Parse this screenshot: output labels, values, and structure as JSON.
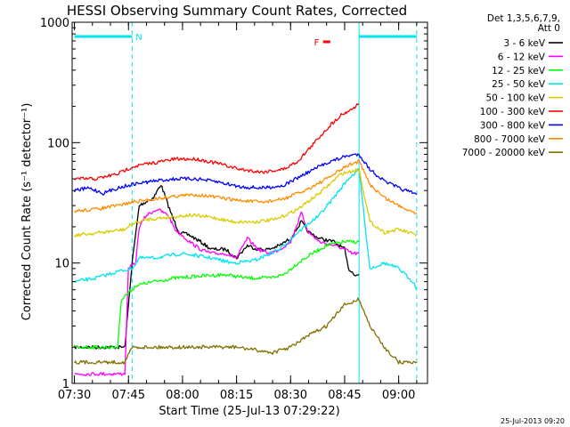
{
  "chart_data": {
    "type": "line",
    "title": "HESSI Observing Summary Count Rates, Corrected",
    "xlabel": "Start Time (25-Jul-13 07:29:22)",
    "ylabel": "Corrected Count Rate (s⁻¹ detector⁻¹)",
    "yscale": "log",
    "xlim": [
      "07:29:22",
      "09:08:00"
    ],
    "ylim": [
      1,
      1000
    ],
    "x_ticks": [
      "07:30",
      "07:45",
      "08:00",
      "08:15",
      "08:30",
      "08:45",
      "09:00"
    ],
    "y_ticks": [
      "1",
      "10",
      "100",
      "1000"
    ],
    "grid": false,
    "legend_position": "right",
    "legend_header": [
      "Det 1,3,5,6,7,9,",
      "Att 0"
    ],
    "footer_date": "25-Jul-2013 09:20",
    "flags": [
      {
        "label": "N",
        "color": "#00e5ee",
        "start": "07:30",
        "end": "07:46"
      },
      {
        "label": "F",
        "color": "#ff0000",
        "start": "08:39",
        "end": "08:41"
      },
      {
        "label": "",
        "color": "#00e5ee",
        "start": "08:49",
        "end": "09:05"
      }
    ],
    "markers": [
      {
        "time": "07:29:22",
        "style": "solid",
        "color": "#00e5ee"
      },
      {
        "time": "07:46",
        "style": "dashed",
        "color": "#00e5ee"
      },
      {
        "time": "08:49",
        "style": "solid",
        "color": "#00e5ee"
      },
      {
        "time": "09:05",
        "style": "dashed",
        "color": "#00e5ee"
      }
    ],
    "series": [
      {
        "name": "3 - 6 keV",
        "color": "#000000",
        "points": [
          [
            "07:30",
            2
          ],
          [
            "07:44",
            2
          ],
          [
            "07:46",
            10
          ],
          [
            "07:48",
            30
          ],
          [
            "07:52",
            35
          ],
          [
            "07:54",
            45
          ],
          [
            "07:57",
            25
          ],
          [
            "07:59",
            18
          ],
          [
            "08:02",
            17
          ],
          [
            "08:05",
            15
          ],
          [
            "08:08",
            13
          ],
          [
            "08:12",
            13
          ],
          [
            "08:15",
            11
          ],
          [
            "08:18",
            14
          ],
          [
            "08:21",
            13
          ],
          [
            "08:24",
            13
          ],
          [
            "08:27",
            14
          ],
          [
            "08:30",
            16
          ],
          [
            "08:33",
            22
          ],
          [
            "08:35",
            18
          ],
          [
            "08:38",
            16
          ],
          [
            "08:42",
            15
          ],
          [
            "08:45",
            13
          ],
          [
            "08:46",
            9
          ],
          [
            "08:48",
            8
          ],
          [
            "08:49",
            8
          ]
        ]
      },
      {
        "name": "6 - 12 keV",
        "color": "#ff00ff",
        "points": [
          [
            "07:30",
            1.2
          ],
          [
            "07:44",
            1.2
          ],
          [
            "07:45",
            9
          ],
          [
            "07:47",
            10
          ],
          [
            "07:48",
            20
          ],
          [
            "07:50",
            25
          ],
          [
            "07:53",
            28
          ],
          [
            "07:56",
            25
          ],
          [
            "07:58",
            19
          ],
          [
            "08:02",
            15
          ],
          [
            "08:05",
            13
          ],
          [
            "08:08",
            12
          ],
          [
            "08:12",
            12
          ],
          [
            "08:15",
            11
          ],
          [
            "08:18",
            16
          ],
          [
            "08:21",
            13
          ],
          [
            "08:24",
            12
          ],
          [
            "08:27",
            13
          ],
          [
            "08:30",
            15
          ],
          [
            "08:33",
            26
          ],
          [
            "08:35",
            18
          ],
          [
            "08:38",
            15
          ],
          [
            "08:42",
            14
          ],
          [
            "08:45",
            13
          ],
          [
            "08:47",
            12
          ],
          [
            "08:49",
            12
          ]
        ]
      },
      {
        "name": "12 - 25 keV",
        "color": "#00ff00",
        "points": [
          [
            "07:30",
            2
          ],
          [
            "07:42",
            2
          ],
          [
            "07:43",
            5
          ],
          [
            "07:46",
            6
          ],
          [
            "07:47",
            6.5
          ],
          [
            "07:52",
            7
          ],
          [
            "07:58",
            7.5
          ],
          [
            "08:05",
            7.8
          ],
          [
            "08:12",
            8
          ],
          [
            "08:18",
            7.5
          ],
          [
            "08:24",
            7.5
          ],
          [
            "08:28",
            8
          ],
          [
            "08:32",
            10
          ],
          [
            "08:36",
            12
          ],
          [
            "08:40",
            14
          ],
          [
            "08:45",
            15
          ],
          [
            "08:49",
            15
          ]
        ]
      },
      {
        "name": "25 - 50 keV",
        "color": "#00e5ee",
        "points": [
          [
            "07:30",
            7
          ],
          [
            "07:36",
            7.5
          ],
          [
            "07:42",
            8.5
          ],
          [
            "07:46",
            9
          ],
          [
            "07:48",
            11
          ],
          [
            "07:52",
            11
          ],
          [
            "08:00",
            12
          ],
          [
            "08:08",
            11
          ],
          [
            "08:14",
            10
          ],
          [
            "08:20",
            10.5
          ],
          [
            "08:27",
            13
          ],
          [
            "08:32",
            18
          ],
          [
            "08:38",
            25
          ],
          [
            "08:42",
            35
          ],
          [
            "08:46",
            50
          ],
          [
            "08:49",
            60
          ],
          [
            "08:52",
            9
          ],
          [
            "08:56",
            10
          ],
          [
            "09:00",
            9
          ],
          [
            "09:04",
            7
          ],
          [
            "09:05",
            6
          ]
        ]
      },
      {
        "name": "50 - 100 keV",
        "color": "#d9cc00",
        "points": [
          [
            "07:30",
            17
          ],
          [
            "07:38",
            18
          ],
          [
            "07:44",
            19
          ],
          [
            "07:46",
            21
          ],
          [
            "07:50",
            23
          ],
          [
            "07:56",
            24
          ],
          [
            "08:02",
            25
          ],
          [
            "08:08",
            24
          ],
          [
            "08:14",
            22
          ],
          [
            "08:20",
            22
          ],
          [
            "08:26",
            23
          ],
          [
            "08:32",
            28
          ],
          [
            "08:38",
            38
          ],
          [
            "08:44",
            55
          ],
          [
            "08:49",
            60
          ],
          [
            "08:52",
            22
          ],
          [
            "08:56",
            18
          ],
          [
            "09:00",
            19
          ],
          [
            "09:05",
            17
          ]
        ]
      },
      {
        "name": "100 - 300 keV",
        "color": "#ff0000",
        "points": [
          [
            "07:30",
            50
          ],
          [
            "07:36",
            50
          ],
          [
            "07:42",
            55
          ],
          [
            "07:46",
            63
          ],
          [
            "07:52",
            68
          ],
          [
            "07:58",
            73
          ],
          [
            "08:04",
            73
          ],
          [
            "08:10",
            67
          ],
          [
            "08:16",
            60
          ],
          [
            "08:22",
            57
          ],
          [
            "08:28",
            60
          ],
          [
            "08:32",
            70
          ],
          [
            "08:36",
            95
          ],
          [
            "08:40",
            130
          ],
          [
            "08:44",
            170
          ],
          [
            "08:47",
            190
          ],
          [
            "08:49",
            210
          ]
        ]
      },
      {
        "name": "300 - 800 keV",
        "color": "#0000ff",
        "points": [
          [
            "07:30",
            40
          ],
          [
            "07:34",
            42
          ],
          [
            "07:38",
            38
          ],
          [
            "07:42",
            42
          ],
          [
            "07:46",
            45
          ],
          [
            "07:52",
            48
          ],
          [
            "07:58",
            50
          ],
          [
            "08:04",
            50
          ],
          [
            "08:10",
            47
          ],
          [
            "08:16",
            43
          ],
          [
            "08:22",
            42
          ],
          [
            "08:28",
            44
          ],
          [
            "08:34",
            55
          ],
          [
            "08:40",
            68
          ],
          [
            "08:46",
            78
          ],
          [
            "08:49",
            80
          ],
          [
            "08:52",
            60
          ],
          [
            "08:56",
            48
          ],
          [
            "09:00",
            42
          ],
          [
            "09:05",
            37
          ]
        ]
      },
      {
        "name": "800 - 7000 keV",
        "color": "#ff8c00",
        "points": [
          [
            "07:30",
            27
          ],
          [
            "07:36",
            28
          ],
          [
            "07:42",
            30
          ],
          [
            "07:46",
            32
          ],
          [
            "07:52",
            34
          ],
          [
            "07:58",
            36
          ],
          [
            "08:04",
            37
          ],
          [
            "08:10",
            35
          ],
          [
            "08:16",
            33
          ],
          [
            "08:22",
            32
          ],
          [
            "08:28",
            34
          ],
          [
            "08:34",
            40
          ],
          [
            "08:40",
            50
          ],
          [
            "08:46",
            65
          ],
          [
            "08:49",
            70
          ],
          [
            "08:52",
            45
          ],
          [
            "08:56",
            35
          ],
          [
            "09:00",
            30
          ],
          [
            "09:05",
            26
          ]
        ]
      },
      {
        "name": "7000 - 20000 keV",
        "color": "#807000",
        "points": [
          [
            "07:30",
            1.5
          ],
          [
            "07:44",
            1.5
          ],
          [
            "07:46",
            2
          ],
          [
            "07:55",
            2
          ],
          [
            "08:05",
            2
          ],
          [
            "08:15",
            2
          ],
          [
            "08:25",
            1.8
          ],
          [
            "08:30",
            2
          ],
          [
            "08:35",
            2.5
          ],
          [
            "08:40",
            3
          ],
          [
            "08:45",
            4.5
          ],
          [
            "08:49",
            5
          ],
          [
            "08:52",
            3
          ],
          [
            "08:56",
            2
          ],
          [
            "09:00",
            1.5
          ],
          [
            "09:05",
            1.5
          ]
        ]
      }
    ]
  }
}
